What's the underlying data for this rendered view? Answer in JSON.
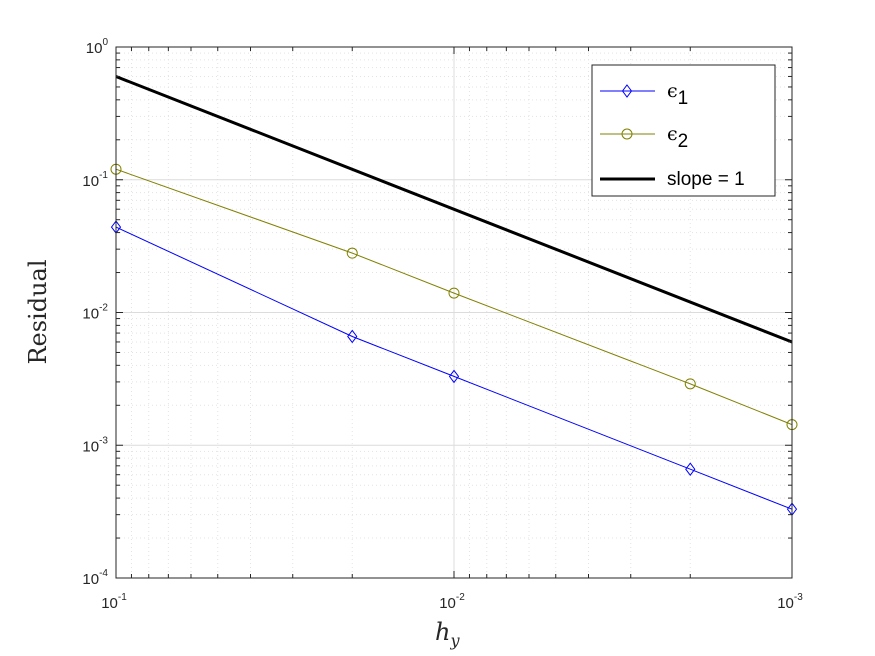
{
  "chart_data": {
    "type": "line",
    "x_scale": "log",
    "y_scale": "log",
    "x_reversed": true,
    "xlim": [
      0.1,
      0.001
    ],
    "ylim": [
      0.0001,
      1
    ],
    "grid": true,
    "minor_grid": true,
    "xlabel_base": "h",
    "xlabel_sub": "y",
    "ylabel": "Residual",
    "x_ticks": [
      {
        "base": "10",
        "exp": "-1",
        "value": 0.1
      },
      {
        "base": "10",
        "exp": "-2",
        "value": 0.01
      },
      {
        "base": "10",
        "exp": "-3",
        "value": 0.001
      }
    ],
    "y_ticks": [
      {
        "base": "10",
        "exp": "0",
        "value": 1
      },
      {
        "base": "10",
        "exp": "-1",
        "value": 0.1
      },
      {
        "base": "10",
        "exp": "-2",
        "value": 0.01
      },
      {
        "base": "10",
        "exp": "-3",
        "value": 0.001
      },
      {
        "base": "10",
        "exp": "-4",
        "value": 0.0001
      }
    ],
    "legend_position": "top-right",
    "series": [
      {
        "name_base": "ϵ",
        "name_sub": "1",
        "color": "#0000ff",
        "marker": "diamond",
        "line_width": 1,
        "x": [
          0.1,
          0.02,
          0.01,
          0.002,
          0.001
        ],
        "y": [
          0.044,
          0.0066,
          0.0033,
          0.00066,
          0.00033
        ]
      },
      {
        "name_base": "ϵ",
        "name_sub": "2",
        "color": "#808000",
        "marker": "circle",
        "line_width": 1,
        "x": [
          0.1,
          0.02,
          0.01,
          0.002,
          0.001
        ],
        "y": [
          0.12,
          0.028,
          0.014,
          0.0029,
          0.00143
        ]
      },
      {
        "name": "slope = 1",
        "color": "#000000",
        "marker": "none",
        "line_width": 3,
        "x": [
          0.1,
          0.001
        ],
        "y": [
          0.6,
          0.006
        ]
      }
    ]
  }
}
